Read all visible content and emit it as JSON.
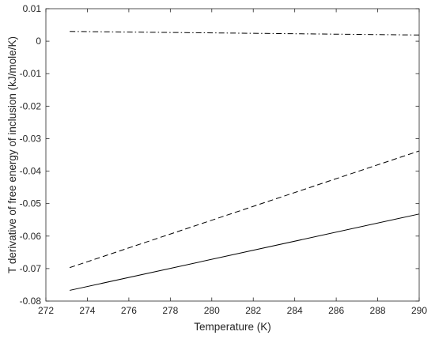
{
  "chart_data": {
    "type": "line",
    "title": "",
    "xlabel": "Temperature (K)",
    "ylabel": "T derivative of free energy of inclusion (kJ/mole/K)",
    "xlim": [
      272,
      290
    ],
    "ylim": [
      -0.08,
      0.01
    ],
    "xticks": [
      272,
      274,
      276,
      278,
      280,
      282,
      284,
      286,
      288,
      290
    ],
    "yticks": [
      0.01,
      0,
      -0.01,
      -0.02,
      -0.03,
      -0.04,
      -0.05,
      -0.06,
      -0.07,
      -0.08
    ],
    "xtick_labels": [
      "272",
      "274",
      "276",
      "278",
      "280",
      "282",
      "284",
      "286",
      "288",
      "290"
    ],
    "ytick_labels": [
      "0.01",
      "0",
      "-0.01",
      "-0.02",
      "-0.03",
      "-0.04",
      "-0.05",
      "-0.06",
      "-0.07",
      "-0.08"
    ],
    "grid": false,
    "legend": "none",
    "series": [
      {
        "style": "dashdot",
        "color": "#000000",
        "x": [
          273.15,
          290
        ],
        "y": [
          0.003,
          0.0019
        ]
      },
      {
        "style": "dashed",
        "color": "#000000",
        "x": [
          273.15,
          290
        ],
        "y": [
          -0.0697,
          -0.0338
        ]
      },
      {
        "style": "solid",
        "color": "#000000",
        "x": [
          273.15,
          290
        ],
        "y": [
          -0.0767,
          -0.0532
        ]
      }
    ]
  }
}
